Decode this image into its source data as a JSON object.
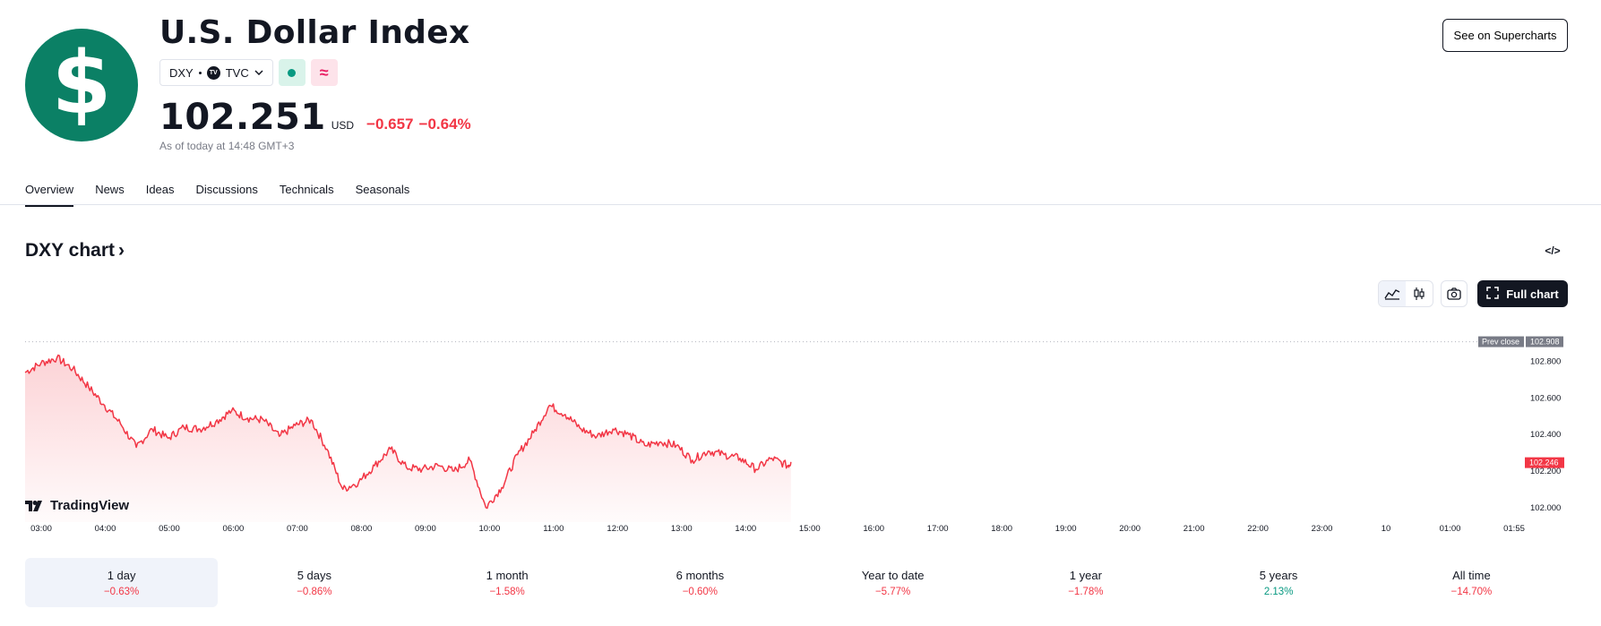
{
  "header": {
    "logo_glyph": "$",
    "title": "U.S. Dollar Index",
    "symbol": "DXY",
    "exchange": "TVC",
    "exchange_badge": "TV",
    "price": "102.251",
    "currency": "USD",
    "change": "−0.657",
    "change_pct": "−0.64%",
    "as_of": "As of today at 14:48 GMT+3",
    "supercharts_label": "See on Supercharts",
    "status_pink_glyph": "≈"
  },
  "tabs": [
    "Overview",
    "News",
    "Ideas",
    "Discussions",
    "Technicals",
    "Seasonals"
  ],
  "chart_header": {
    "title": "DXY chart",
    "title_arrow": "›",
    "embed_glyph": "</>",
    "full_chart_label": "Full chart"
  },
  "branding": {
    "name": "TradingView"
  },
  "colors": {
    "accent_green": "#0b8065",
    "negative": "#f23645",
    "positive": "#089981"
  },
  "chart_data": {
    "type": "area",
    "prev_close_label": "Prev close",
    "prev_close": 102.908,
    "last_value": 102.246,
    "ylim": [
      101.95,
      102.95
    ],
    "y_ticks": [
      102.0,
      102.2,
      102.4,
      102.6,
      102.8
    ],
    "y_tick_labels": [
      "102.000",
      "102.200",
      "102.400",
      "102.600",
      "102.800"
    ],
    "x_tick_labels": [
      "03:00",
      "04:00",
      "05:00",
      "06:00",
      "07:00",
      "08:00",
      "09:00",
      "10:00",
      "11:00",
      "12:00",
      "13:00",
      "14:00",
      "15:00",
      "16:00",
      "17:00",
      "18:00",
      "19:00",
      "20:00",
      "21:00",
      "22:00",
      "23:00",
      "10",
      "01:00",
      "01:55"
    ],
    "x_hours": [
      2.75,
      3.0,
      3.25,
      3.5,
      3.75,
      4.0,
      4.25,
      4.5,
      4.75,
      5.0,
      5.25,
      5.5,
      5.75,
      6.0,
      6.25,
      6.5,
      6.75,
      7.0,
      7.25,
      7.5,
      7.75,
      8.0,
      8.25,
      8.5,
      8.75,
      9.0,
      9.25,
      9.5,
      9.75,
      10.0,
      10.25,
      10.5,
      10.75,
      11.0,
      11.25,
      11.5,
      11.75,
      12.0,
      12.25,
      12.5,
      12.75,
      13.0,
      13.25,
      13.5,
      13.75,
      14.0,
      14.25,
      14.5,
      14.75,
      14.8
    ],
    "values": [
      102.74,
      102.79,
      102.82,
      102.76,
      102.66,
      102.56,
      102.46,
      102.33,
      102.43,
      102.38,
      102.44,
      102.43,
      102.47,
      102.53,
      102.49,
      102.48,
      102.39,
      102.45,
      102.48,
      102.32,
      102.1,
      102.14,
      102.23,
      102.32,
      102.22,
      102.21,
      102.23,
      102.2,
      102.26,
      102.0,
      102.11,
      102.29,
      102.41,
      102.56,
      102.51,
      102.43,
      102.39,
      102.43,
      102.4,
      102.34,
      102.36,
      102.34,
      102.26,
      102.31,
      102.29,
      102.27,
      102.21,
      102.27,
      102.23,
      102.25
    ],
    "grid": false
  },
  "periods": [
    {
      "label": "1 day",
      "value": "−0.63%",
      "dir": "neg"
    },
    {
      "label": "5 days",
      "value": "−0.86%",
      "dir": "neg"
    },
    {
      "label": "1 month",
      "value": "−1.58%",
      "dir": "neg"
    },
    {
      "label": "6 months",
      "value": "−0.60%",
      "dir": "neg"
    },
    {
      "label": "Year to date",
      "value": "−5.77%",
      "dir": "neg"
    },
    {
      "label": "1 year",
      "value": "−1.78%",
      "dir": "neg"
    },
    {
      "label": "5 years",
      "value": "2.13%",
      "dir": "pos"
    },
    {
      "label": "All time",
      "value": "−14.70%",
      "dir": "neg"
    }
  ]
}
